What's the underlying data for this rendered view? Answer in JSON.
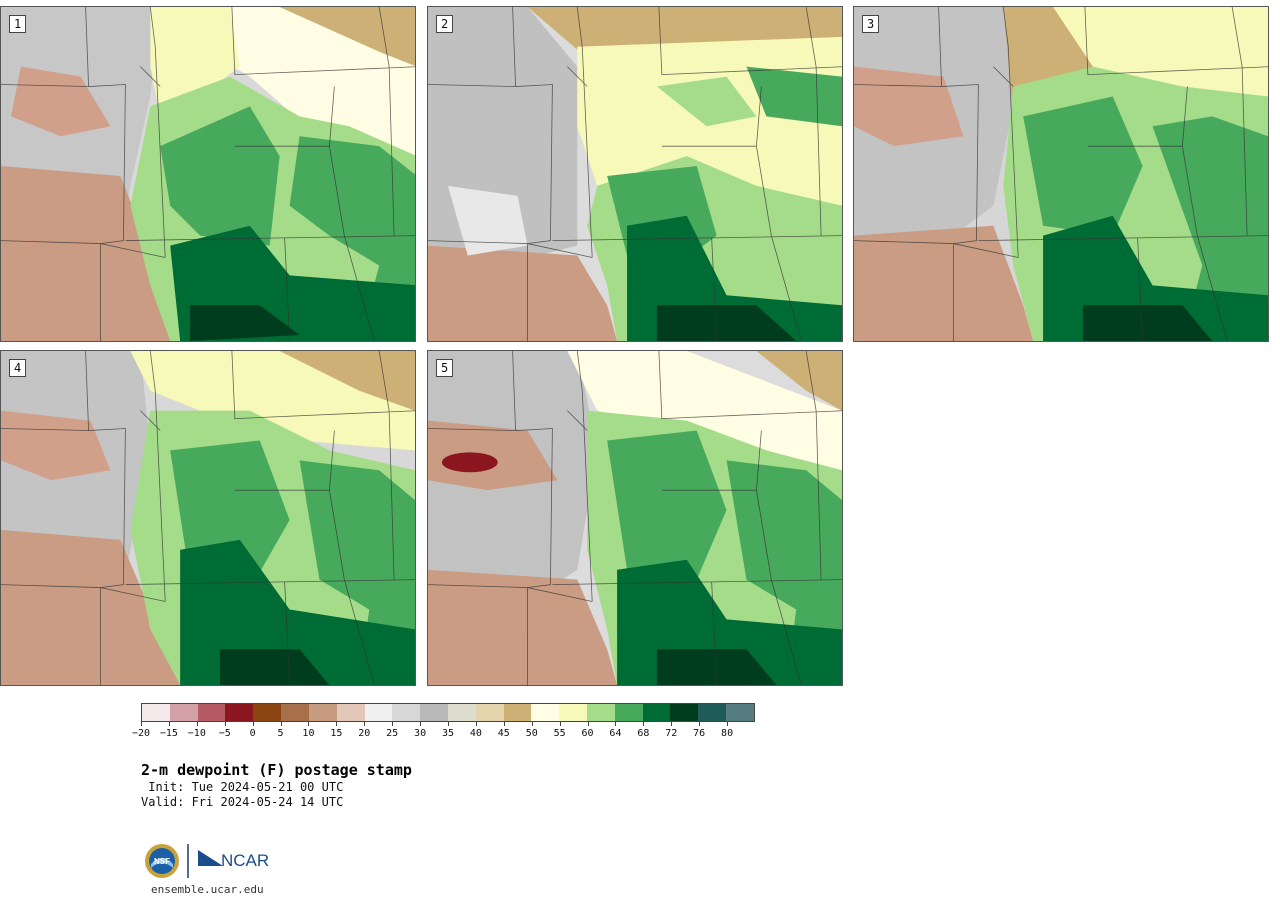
{
  "panels": [
    {
      "label": "1"
    },
    {
      "label": "2"
    },
    {
      "label": "3"
    },
    {
      "label": "4"
    },
    {
      "label": "5"
    }
  ],
  "colorbar": {
    "colors": [
      "#f4e9eb",
      "#d5a1a9",
      "#b65b63",
      "#8b1620",
      "#8a4512",
      "#a8704a",
      "#c79c80",
      "#e3c7b8",
      "#f0f0f0",
      "#d7d7d7",
      "#b9b9b9",
      "#dedbcf",
      "#e4d4ac",
      "#cdb075",
      "#fffde3",
      "#f6f9b8",
      "#a5dc8a",
      "#47a95b",
      "#006c35",
      "#003d1f",
      "#1f5b58",
      "#567e82"
    ],
    "tick_labels": [
      "−20",
      "−15",
      "−10",
      "−5",
      "0",
      "5",
      "10",
      "15",
      "20",
      "25",
      "30",
      "35",
      "40",
      "45",
      "50",
      "55",
      "60",
      "64",
      "68",
      "72",
      "76",
      "80"
    ]
  },
  "title": "2-m dewpoint (F) postage stamp",
  "init": " Init: Tue 2024-05-21 00 UTC",
  "valid": "Valid: Fri 2024-05-24 14 UTC",
  "logos": {
    "nsf": "NSF",
    "ncar": "NCAR"
  },
  "url": "ensemble.ucar.edu"
}
